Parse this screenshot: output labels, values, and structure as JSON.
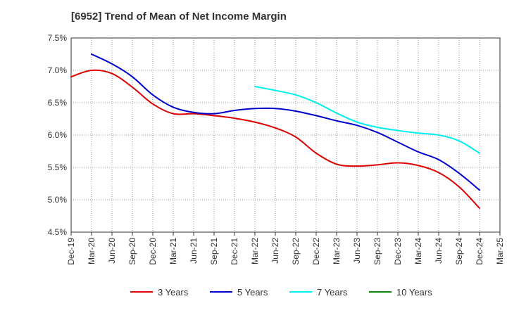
{
  "chart_data": {
    "type": "line",
    "title": "[6952]  Trend of Mean of Net Income Margin",
    "xlabel": "",
    "ylabel": "",
    "ylim": [
      4.5,
      7.5
    ],
    "yticks": [
      "4.5%",
      "5.0%",
      "5.5%",
      "6.0%",
      "6.5%",
      "7.0%",
      "7.5%"
    ],
    "categories": [
      "Dec-19",
      "Mar-20",
      "Jun-20",
      "Sep-20",
      "Dec-20",
      "Mar-21",
      "Jun-21",
      "Sep-21",
      "Dec-21",
      "Mar-22",
      "Jun-22",
      "Sep-22",
      "Dec-22",
      "Mar-23",
      "Jun-23",
      "Sep-23",
      "Dec-23",
      "Mar-24",
      "Jun-24",
      "Sep-24",
      "Dec-24",
      "Mar-25"
    ],
    "grid": true,
    "legend_position": "bottom",
    "series": [
      {
        "name": "3 Years",
        "color": "#dd0000",
        "values": [
          6.9,
          7.0,
          6.95,
          6.74,
          6.48,
          6.33,
          6.33,
          6.3,
          6.26,
          6.2,
          6.11,
          5.97,
          5.72,
          5.55,
          5.52,
          5.54,
          5.57,
          5.53,
          5.42,
          5.2,
          4.87,
          null
        ]
      },
      {
        "name": "5 Years",
        "color": "#0000cc",
        "values": [
          null,
          7.25,
          7.1,
          6.9,
          6.62,
          6.43,
          6.35,
          6.33,
          6.38,
          6.41,
          6.41,
          6.37,
          6.3,
          6.22,
          6.15,
          6.04,
          5.89,
          5.74,
          5.62,
          5.41,
          5.15,
          null
        ]
      },
      {
        "name": "7 Years",
        "color": "#00eeee",
        "values": [
          null,
          null,
          null,
          null,
          null,
          null,
          null,
          null,
          null,
          6.75,
          6.69,
          6.62,
          6.5,
          6.34,
          6.2,
          6.12,
          6.07,
          6.03,
          6.0,
          5.91,
          5.72,
          null
        ]
      },
      {
        "name": "10 Years",
        "color": "#008800",
        "values": [
          null,
          null,
          null,
          null,
          null,
          null,
          null,
          null,
          null,
          null,
          null,
          null,
          null,
          null,
          null,
          null,
          null,
          null,
          null,
          null,
          null,
          null
        ]
      }
    ]
  }
}
